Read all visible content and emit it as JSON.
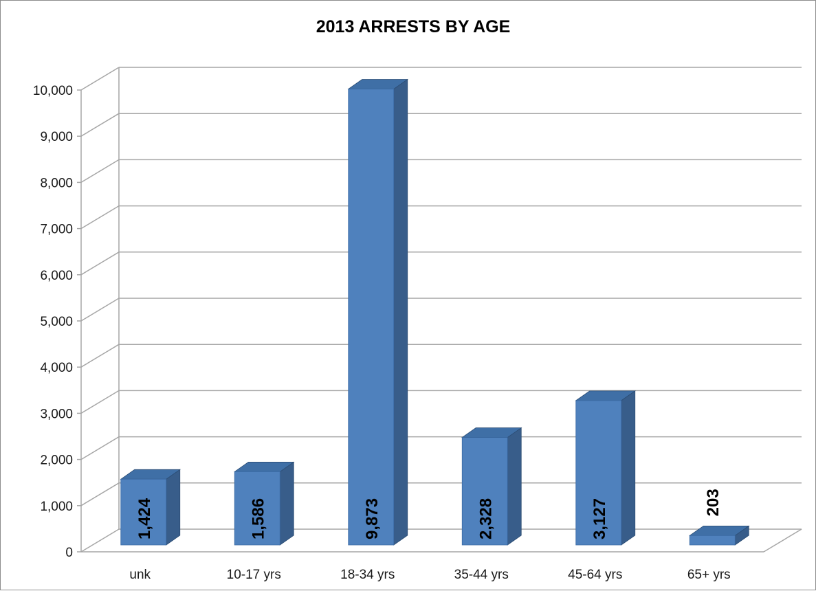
{
  "chart_data": {
    "type": "bar",
    "title": "2013 ARRESTS BY AGE",
    "categories": [
      "unk",
      "10-17 yrs",
      "18-34 yrs",
      "35-44 yrs",
      "45-64 yrs",
      "65+ yrs"
    ],
    "values": [
      1424,
      1586,
      9873,
      2328,
      3127,
      203
    ],
    "value_labels": [
      "1,424",
      "1,586",
      "9,873",
      "2,328",
      "3,127",
      "203"
    ],
    "y_ticks": [
      "0",
      "1,000",
      "2,000",
      "3,000",
      "4,000",
      "5,000",
      "6,000",
      "7,000",
      "8,000",
      "9,000",
      "10,000"
    ],
    "ylim": [
      0,
      10000
    ],
    "xlabel": "",
    "ylabel": "",
    "grid": true,
    "three_d": true,
    "bar_color": "#4f81bd",
    "bar_side_color": "#385d8a",
    "bar_top_color": "#3f6fa6"
  }
}
